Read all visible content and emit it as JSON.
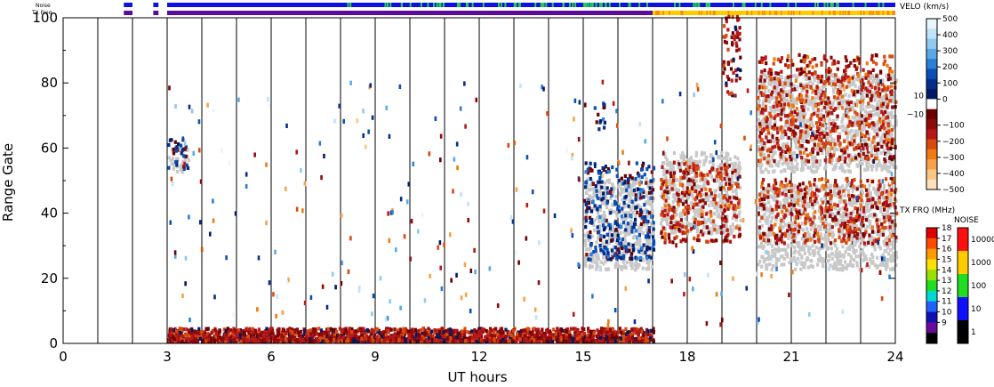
{
  "chart_data": {
    "type": "scatter",
    "subtype": "range-time velocity plot",
    "xlabel": "UT hours",
    "ylabel": "Range Gate",
    "xlim": [
      0,
      24
    ],
    "ylim": [
      0,
      100
    ],
    "x_ticks": [
      "0",
      "3",
      "6",
      "9",
      "12",
      "15",
      "18",
      "21",
      "24"
    ],
    "y_ticks": [
      "0",
      "20",
      "40",
      "60",
      "80",
      "100"
    ],
    "x_tick_values": [
      0,
      3,
      6,
      9,
      12,
      15,
      18,
      21,
      24
    ],
    "y_tick_values": [
      0,
      20,
      40,
      60,
      80,
      100
    ],
    "hour_lines": [
      1,
      2,
      3,
      4,
      5,
      6,
      7,
      8,
      9,
      10,
      11,
      12,
      13,
      14,
      15,
      16,
      17,
      18,
      19,
      20,
      21,
      22,
      23
    ],
    "top_bars": {
      "noise_label": "Noise",
      "txfreq_label": "TX Freq",
      "segments": [
        [
          1.75,
          2.0
        ],
        [
          2.6,
          2.75
        ],
        [
          3.0,
          24.0
        ]
      ],
      "tx_color_change_hour": 17.0,
      "noise_color": "#1010e0",
      "noise_alt_color": "#22cc55",
      "tx_before_color": "#5a0d9a",
      "tx_after_color": "#ffcc00"
    },
    "velocity_colorbar": {
      "title": "VELO (km/s)",
      "labels": [
        "500",
        "400",
        "300",
        "200",
        "100",
        "0",
        "−100",
        "−200",
        "−300",
        "−400",
        "−500"
      ],
      "values": [
        500,
        400,
        300,
        200,
        100,
        0,
        -100,
        -200,
        -300,
        -400,
        -500
      ],
      "inner_labels": [
        "10",
        "−10"
      ],
      "colors": [
        "#eaf6fd",
        "#bfe3f7",
        "#8fcaf0",
        "#58a9e6",
        "#2a7fd6",
        "#0a4fb8",
        "#042e8c",
        "#021a66",
        "#ffffff",
        "#6b0000",
        "#8e0a0a",
        "#b81818",
        "#d94b0d",
        "#ef7a12",
        "#f7a24a",
        "#fbc784",
        "#fde0bb"
      ]
    },
    "txfreq_colorbar": {
      "title": "TX FRQ (MHz)",
      "labels": [
        "18",
        "17",
        "16",
        "15",
        "14",
        "13",
        "12",
        "11",
        "10",
        "9"
      ],
      "colors": [
        "#e00000",
        "#ff4b00",
        "#ff9a00",
        "#ffe000",
        "#98e000",
        "#20dd20",
        "#00d8d8",
        "#2060ff",
        "#1010b0",
        "#6a0a9a",
        "#000000"
      ]
    },
    "noise_colorbar": {
      "title": "NOISE",
      "labels": [
        "10000",
        "1000",
        "100",
        "10",
        "1"
      ],
      "colors": [
        "#ff1010",
        "#ffcc00",
        "#20dd20",
        "#1010ff",
        "#000000"
      ]
    },
    "colors": {
      "ground_scatter": "#c8c8c8",
      "negative_velocity": "#8b0000",
      "positive_velocity": "#0a1f8a",
      "grid_lines": "#000000"
    },
    "series": [
      {
        "values": [
          {
            "t0": 3.0,
            "t1": 17.0,
            "g0": 0,
            "g1": 4,
            "velocity": -100
          },
          {
            "t0": 3.0,
            "t1": 3.6,
            "g0": 53,
            "g1": 62,
            "velocity": 50
          },
          {
            "t0": 15.0,
            "t1": 17.0,
            "g0": 25,
            "g1": 55,
            "velocity": 80
          },
          {
            "t0": 15.3,
            "t1": 15.6,
            "g0": 65,
            "g1": 74,
            "velocity": 80
          },
          {
            "t0": 17.2,
            "t1": 19.5,
            "g0": 30,
            "g1": 55,
            "velocity": -150
          },
          {
            "t0": 20.0,
            "t1": 24.0,
            "g0": 30,
            "g1": 50,
            "velocity": -150
          },
          {
            "t0": 20.0,
            "t1": 24.0,
            "g0": 55,
            "g1": 88,
            "velocity": -150
          },
          {
            "t0": 19.0,
            "t1": 19.5,
            "g0": 75,
            "g1": 100,
            "velocity": -100
          }
        ]
      },
      {
        "values": [
          {
            "t0": 3.0,
            "t1": 3.6,
            "g0": 52,
            "g1": 60
          },
          {
            "t0": 15.0,
            "t1": 17.0,
            "g0": 22,
            "g1": 50
          },
          {
            "t0": 17.2,
            "t1": 19.5,
            "g0": 33,
            "g1": 58
          },
          {
            "t0": 20.0,
            "t1": 24.0,
            "g0": 22,
            "g1": 48
          },
          {
            "t0": 20.0,
            "t1": 24.0,
            "g0": 52,
            "g1": 82
          }
        ]
      }
    ]
  }
}
